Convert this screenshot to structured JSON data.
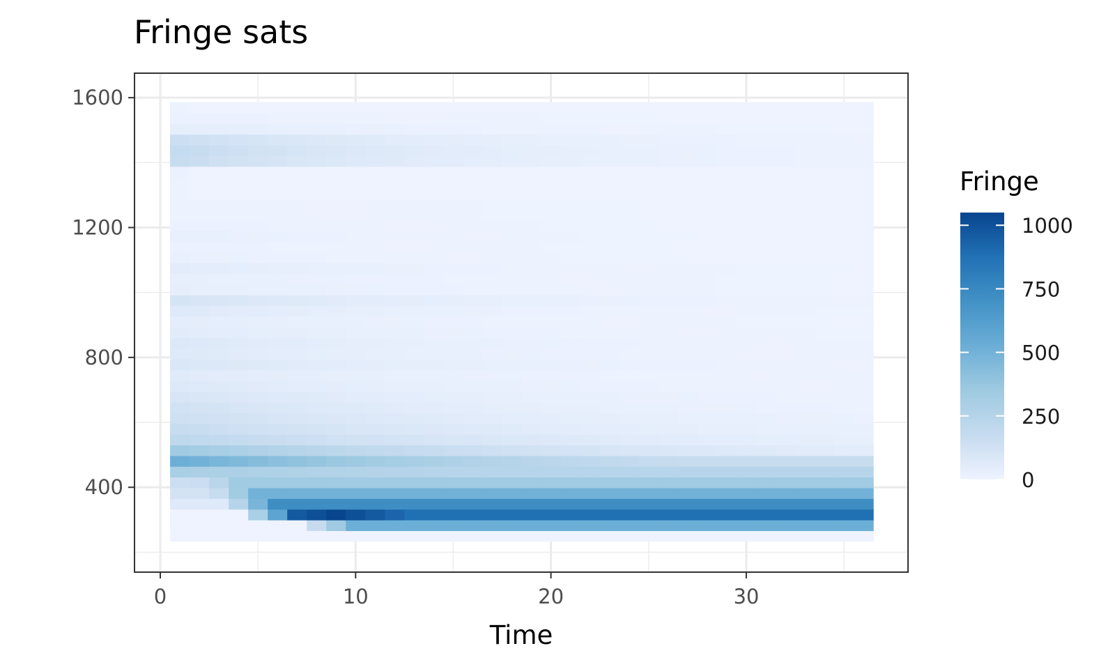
{
  "chart_data": {
    "type": "heatmap",
    "title": "Fringe sats",
    "xlabel": "Time",
    "ylabel": "",
    "x_range": [
      0.5,
      36.5
    ],
    "y_range": [
      200,
      1600
    ],
    "x_ticks": [
      0,
      10,
      20,
      30
    ],
    "y_ticks": [
      400,
      800,
      1200,
      1600
    ],
    "x_tick_labels": [
      "0",
      "10",
      "20",
      "30"
    ],
    "y_tick_labels": [
      "400",
      "800",
      "1200",
      "1600"
    ],
    "time_start": 1,
    "time_end": 36,
    "bin_height": 33,
    "value_range": [
      0,
      1050
    ],
    "legend": {
      "title": "Fringe",
      "position": "right",
      "ticks": [
        0,
        250,
        500,
        750,
        1000
      ],
      "tick_labels": [
        "0",
        "250",
        "500",
        "750",
        "1000"
      ]
    },
    "color_scale": [
      "#eef3ff",
      "#c6dbef",
      "#9ecae1",
      "#6baed6",
      "#4292c6",
      "#2171b5",
      "#08458f"
    ],
    "grid": true,
    "rows": [
      {
        "y": 250,
        "v0": 0,
        "v1": 0,
        "onset": 99,
        "plateau": 0
      },
      {
        "y": 283,
        "v0": 0,
        "v1": 0,
        "onset": 8,
        "plateau": 520,
        "peak": 280
      },
      {
        "y": 316,
        "v0": 0,
        "v1": 0,
        "onset": 5,
        "plateau": 880,
        "peak": 1050
      },
      {
        "y": 349,
        "v0": 70,
        "v1": 70,
        "onset": 4,
        "plateau": 720,
        "peak": 620
      },
      {
        "y": 382,
        "v0": 120,
        "v1": 100,
        "onset": 3,
        "plateau": 500
      },
      {
        "y": 415,
        "v0": 150,
        "v1": 240,
        "onset": 2,
        "plateau": 340
      },
      {
        "y": 448,
        "v0": 300,
        "v1": 170,
        "onset": 2,
        "plateau": 240
      },
      {
        "y": 481,
        "v0": 520,
        "v1": 110,
        "onset": 1,
        "plateau": 170
      },
      {
        "y": 514,
        "v0": 340,
        "v1": 50,
        "onset": 99,
        "plateau": 0
      },
      {
        "y": 547,
        "v0": 210,
        "v1": 30
      },
      {
        "y": 580,
        "v0": 170,
        "v1": 20
      },
      {
        "y": 613,
        "v0": 140,
        "v1": 15
      },
      {
        "y": 646,
        "v0": 125,
        "v1": 10
      },
      {
        "y": 679,
        "v0": 100,
        "v1": 8
      },
      {
        "y": 712,
        "v0": 75,
        "v1": 5
      },
      {
        "y": 745,
        "v0": 60,
        "v1": 4
      },
      {
        "y": 778,
        "v0": 90,
        "v1": 6
      },
      {
        "y": 811,
        "v0": 70,
        "v1": 4
      },
      {
        "y": 844,
        "v0": 80,
        "v1": 4
      },
      {
        "y": 877,
        "v0": 55,
        "v1": 3
      },
      {
        "y": 910,
        "v0": 45,
        "v1": 2
      },
      {
        "y": 943,
        "v0": 70,
        "v1": 3
      },
      {
        "y": 976,
        "v0": 110,
        "v1": 6
      },
      {
        "y": 1009,
        "v0": 35,
        "v1": 2
      },
      {
        "y": 1042,
        "v0": 30,
        "v1": 2
      },
      {
        "y": 1075,
        "v0": 50,
        "v1": 2
      },
      {
        "y": 1108,
        "v0": 20,
        "v1": 1
      },
      {
        "y": 1141,
        "v0": 15,
        "v1": 1
      },
      {
        "y": 1174,
        "v0": 25,
        "v1": 1
      },
      {
        "y": 1207,
        "v0": 15,
        "v1": 1
      },
      {
        "y": 1240,
        "v0": 10,
        "v1": 1
      },
      {
        "y": 1273,
        "v0": 10,
        "v1": 1
      },
      {
        "y": 1306,
        "v0": 5,
        "v1": 0
      },
      {
        "y": 1339,
        "v0": 5,
        "v1": 0
      },
      {
        "y": 1372,
        "v0": 15,
        "v1": 0
      },
      {
        "y": 1405,
        "v0": 165,
        "v1": 8
      },
      {
        "y": 1438,
        "v0": 180,
        "v1": 8
      },
      {
        "y": 1471,
        "v0": 150,
        "v1": 6
      },
      {
        "y": 1504,
        "v0": 40,
        "v1": 2
      },
      {
        "y": 1537,
        "v0": 15,
        "v1": 1
      },
      {
        "y": 1570,
        "v0": 8,
        "v1": 0
      }
    ]
  }
}
